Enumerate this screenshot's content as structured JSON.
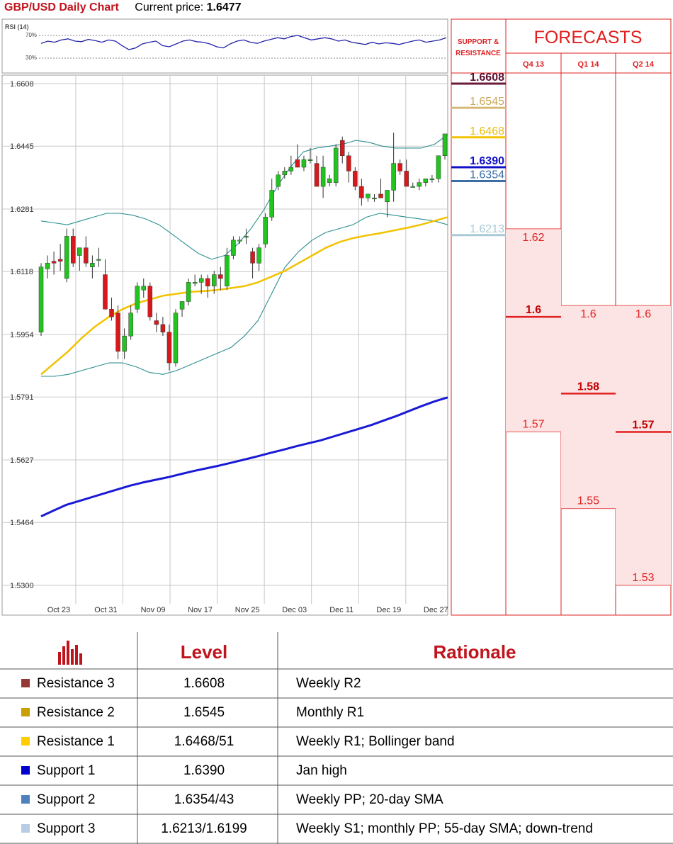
{
  "header": {
    "title": "GBP/USD Daily Chart",
    "price_label": "Current price:",
    "price_value": "1.6477"
  },
  "rsi": {
    "label": "RSI (14)",
    "level_70": "70%",
    "level_30": "30%",
    "values": [
      56,
      60,
      58,
      62,
      64,
      60,
      59,
      63,
      61,
      58,
      62,
      60,
      52,
      45,
      48,
      55,
      58,
      60,
      52,
      50,
      55,
      60,
      62,
      59,
      58,
      55,
      50,
      48,
      55,
      60,
      62,
      58,
      56,
      60,
      63,
      66,
      64,
      68,
      70,
      66,
      62,
      64,
      66,
      64,
      60,
      62,
      58,
      56,
      54,
      58,
      55,
      57,
      56,
      54,
      57,
      60,
      62,
      58,
      60,
      62,
      66
    ]
  },
  "chart_data": {
    "type": "candlestick",
    "title": "GBP/USD Daily Chart",
    "y_ticks": [
      "1.6608",
      "1.6445",
      "1.6281",
      "1.6118",
      "1.5954",
      "1.5791",
      "1.5627",
      "1.5464",
      "1.5300"
    ],
    "ylim": [
      1.53,
      1.6608
    ],
    "x_ticks": [
      "Oct 23",
      "Oct 31",
      "Nov 09",
      "Nov 17",
      "Nov 25",
      "Dec 03",
      "Dec 11",
      "Dec 19",
      "Dec 27"
    ],
    "grid": true,
    "candles": [
      {
        "o": 1.596,
        "h": 1.614,
        "l": 1.595,
        "c": 1.613
      },
      {
        "o": 1.6125,
        "h": 1.616,
        "l": 1.61,
        "c": 1.614
      },
      {
        "o": 1.6145,
        "h": 1.617,
        "l": 1.611,
        "c": 1.614
      },
      {
        "o": 1.615,
        "h": 1.619,
        "l": 1.612,
        "c": 1.6145
      },
      {
        "o": 1.61,
        "h": 1.623,
        "l": 1.609,
        "c": 1.621
      },
      {
        "o": 1.621,
        "h": 1.623,
        "l": 1.613,
        "c": 1.614
      },
      {
        "o": 1.616,
        "h": 1.618,
        "l": 1.612,
        "c": 1.618
      },
      {
        "o": 1.618,
        "h": 1.621,
        "l": 1.613,
        "c": 1.614
      },
      {
        "o": 1.613,
        "h": 1.616,
        "l": 1.61,
        "c": 1.614
      },
      {
        "o": 1.615,
        "h": 1.618,
        "l": 1.613,
        "c": 1.615
      },
      {
        "o": 1.611,
        "h": 1.615,
        "l": 1.602,
        "c": 1.602
      },
      {
        "o": 1.602,
        "h": 1.605,
        "l": 1.599,
        "c": 1.6
      },
      {
        "o": 1.601,
        "h": 1.603,
        "l": 1.589,
        "c": 1.591
      },
      {
        "o": 1.591,
        "h": 1.597,
        "l": 1.589,
        "c": 1.595
      },
      {
        "o": 1.595,
        "h": 1.603,
        "l": 1.594,
        "c": 1.601
      },
      {
        "o": 1.602,
        "h": 1.609,
        "l": 1.601,
        "c": 1.608
      },
      {
        "o": 1.607,
        "h": 1.61,
        "l": 1.605,
        "c": 1.608
      },
      {
        "o": 1.608,
        "h": 1.609,
        "l": 1.599,
        "c": 1.6
      },
      {
        "o": 1.599,
        "h": 1.601,
        "l": 1.596,
        "c": 1.598
      },
      {
        "o": 1.598,
        "h": 1.6,
        "l": 1.595,
        "c": 1.596
      },
      {
        "o": 1.596,
        "h": 1.598,
        "l": 1.586,
        "c": 1.588
      },
      {
        "o": 1.588,
        "h": 1.602,
        "l": 1.587,
        "c": 1.601
      },
      {
        "o": 1.602,
        "h": 1.604,
        "l": 1.6,
        "c": 1.604
      },
      {
        "o": 1.604,
        "h": 1.61,
        "l": 1.603,
        "c": 1.609
      },
      {
        "o": 1.609,
        "h": 1.611,
        "l": 1.608,
        "c": 1.609
      },
      {
        "o": 1.609,
        "h": 1.611,
        "l": 1.606,
        "c": 1.61
      },
      {
        "o": 1.61,
        "h": 1.611,
        "l": 1.605,
        "c": 1.608
      },
      {
        "o": 1.608,
        "h": 1.612,
        "l": 1.606,
        "c": 1.611
      },
      {
        "o": 1.611,
        "h": 1.613,
        "l": 1.607,
        "c": 1.61
      },
      {
        "o": 1.608,
        "h": 1.618,
        "l": 1.607,
        "c": 1.616
      },
      {
        "o": 1.616,
        "h": 1.621,
        "l": 1.615,
        "c": 1.62
      },
      {
        "o": 1.62,
        "h": 1.621,
        "l": 1.619,
        "c": 1.62
      },
      {
        "o": 1.621,
        "h": 1.623,
        "l": 1.619,
        "c": 1.621
      },
      {
        "o": 1.617,
        "h": 1.618,
        "l": 1.61,
        "c": 1.614
      },
      {
        "o": 1.614,
        "h": 1.619,
        "l": 1.612,
        "c": 1.618
      },
      {
        "o": 1.619,
        "h": 1.627,
        "l": 1.618,
        "c": 1.626
      },
      {
        "o": 1.626,
        "h": 1.636,
        "l": 1.625,
        "c": 1.633
      },
      {
        "o": 1.634,
        "h": 1.638,
        "l": 1.633,
        "c": 1.637
      },
      {
        "o": 1.637,
        "h": 1.639,
        "l": 1.636,
        "c": 1.638
      },
      {
        "o": 1.638,
        "h": 1.642,
        "l": 1.637,
        "c": 1.639
      },
      {
        "o": 1.641,
        "h": 1.645,
        "l": 1.639,
        "c": 1.639
      },
      {
        "o": 1.639,
        "h": 1.642,
        "l": 1.638,
        "c": 1.641
      },
      {
        "o": 1.641,
        "h": 1.644,
        "l": 1.64,
        "c": 1.641
      },
      {
        "o": 1.64,
        "h": 1.642,
        "l": 1.634,
        "c": 1.634
      },
      {
        "o": 1.634,
        "h": 1.642,
        "l": 1.631,
        "c": 1.639
      },
      {
        "o": 1.635,
        "h": 1.637,
        "l": 1.634,
        "c": 1.636
      },
      {
        "o": 1.635,
        "h": 1.645,
        "l": 1.634,
        "c": 1.644
      },
      {
        "o": 1.646,
        "h": 1.647,
        "l": 1.64,
        "c": 1.642
      },
      {
        "o": 1.642,
        "h": 1.643,
        "l": 1.635,
        "c": 1.638
      },
      {
        "o": 1.638,
        "h": 1.639,
        "l": 1.633,
        "c": 1.634
      },
      {
        "o": 1.634,
        "h": 1.636,
        "l": 1.629,
        "c": 1.631
      },
      {
        "o": 1.631,
        "h": 1.632,
        "l": 1.63,
        "c": 1.632
      },
      {
        "o": 1.631,
        "h": 1.632,
        "l": 1.63,
        "c": 1.631
      },
      {
        "o": 1.632,
        "h": 1.636,
        "l": 1.631,
        "c": 1.631
      },
      {
        "o": 1.63,
        "h": 1.633,
        "l": 1.626,
        "c": 1.633
      },
      {
        "o": 1.633,
        "h": 1.648,
        "l": 1.63,
        "c": 1.64
      },
      {
        "o": 1.64,
        "h": 1.641,
        "l": 1.637,
        "c": 1.638
      },
      {
        "o": 1.638,
        "h": 1.641,
        "l": 1.634,
        "c": 1.634
      },
      {
        "o": 1.634,
        "h": 1.635,
        "l": 1.634,
        "c": 1.634
      },
      {
        "o": 1.634,
        "h": 1.636,
        "l": 1.633,
        "c": 1.635
      },
      {
        "o": 1.635,
        "h": 1.636,
        "l": 1.634,
        "c": 1.636
      },
      {
        "o": 1.636,
        "h": 1.637,
        "l": 1.635,
        "c": 1.636
      },
      {
        "o": 1.636,
        "h": 1.642,
        "l": 1.635,
        "c": 1.642
      },
      {
        "o": 1.642,
        "h": 1.647,
        "l": 1.641,
        "c": 1.6477
      }
    ],
    "sma_long": [
      1.548,
      1.5495,
      1.551,
      1.552,
      1.553,
      1.554,
      1.555,
      1.556,
      1.5568,
      1.5575,
      1.5582,
      1.559,
      1.5598,
      1.5605,
      1.5612,
      1.562,
      1.5628,
      1.5636,
      1.5645,
      1.5653,
      1.5662,
      1.567,
      1.5678,
      1.5688,
      1.5698,
      1.5708,
      1.5718,
      1.573,
      1.5742,
      1.5755,
      1.5768,
      1.578,
      1.579
    ],
    "sma_55": [
      1.585,
      1.588,
      1.591,
      1.5945,
      1.5975,
      1.6,
      1.602,
      1.6035,
      1.6045,
      1.6055,
      1.606,
      1.6065,
      1.6067,
      1.607,
      1.6075,
      1.608,
      1.609,
      1.6105,
      1.612,
      1.614,
      1.616,
      1.618,
      1.6195,
      1.6205,
      1.6212,
      1.6218,
      1.6225,
      1.6232,
      1.624,
      1.625,
      1.626
    ],
    "bb_upper": [
      1.625,
      1.6245,
      1.624,
      1.625,
      1.626,
      1.627,
      1.627,
      1.6265,
      1.6255,
      1.624,
      1.6215,
      1.619,
      1.6165,
      1.615,
      1.616,
      1.619,
      1.623,
      1.628,
      1.634,
      1.639,
      1.643,
      1.644,
      1.6445,
      1.645,
      1.646,
      1.6455,
      1.6445,
      1.644,
      1.644,
      1.644,
      1.645,
      1.6475
    ],
    "bb_lower": [
      1.5845,
      1.5845,
      1.585,
      1.586,
      1.587,
      1.588,
      1.588,
      1.587,
      1.5855,
      1.585,
      1.586,
      1.5875,
      1.589,
      1.5905,
      1.592,
      1.595,
      1.599,
      1.606,
      1.613,
      1.617,
      1.62,
      1.622,
      1.623,
      1.624,
      1.626,
      1.627,
      1.6265,
      1.626,
      1.6255,
      1.625,
      1.624
    ]
  },
  "support_resistance": {
    "header": "SUPPORT & RESISTANCE",
    "levels": [
      {
        "value": "1.6608",
        "price": 1.6608,
        "color": "#6a1b3a",
        "text_color": "#5b1030"
      },
      {
        "value": "1.6545",
        "price": 1.6545,
        "color": "#d6b878",
        "text_color": "#caa75a"
      },
      {
        "value": "1.6468",
        "price": 1.6468,
        "color": "#f2c200",
        "text_color": "#e8be10"
      },
      {
        "value": "1.6390",
        "price": 1.639,
        "color": "#1010c8",
        "text_color": "#1010c8"
      },
      {
        "value": "1.6354",
        "price": 1.6354,
        "color": "#3a6ea5",
        "text_color": "#3a6ea5"
      },
      {
        "value": "1.6213",
        "price": 1.6213,
        "color": "#a9cbd6",
        "text_color": "#a9cbd6"
      }
    ]
  },
  "forecasts": {
    "title": "FORECASTS",
    "columns": [
      {
        "quarter": "Q4 13",
        "high": "1.62",
        "mid": "1.6",
        "low": "1.57",
        "high_v": 1.62,
        "mid_v": 1.6,
        "low_v": 1.57
      },
      {
        "quarter": "Q1 14",
        "high": "1.6",
        "mid": "1.58",
        "low": "1.55",
        "high_v": 1.6,
        "mid_v": 1.58,
        "low_v": 1.55
      },
      {
        "quarter": "Q2 14",
        "high": "1.6",
        "mid": "1.57",
        "low": "1.53",
        "high_v": 1.6,
        "mid_v": 1.57,
        "low_v": 1.53
      }
    ]
  },
  "levels_table": {
    "headers": {
      "level": "Level",
      "rationale": "Rationale"
    },
    "rows": [
      {
        "name": "Resistance 3",
        "level": "1.6608",
        "rationale": "Weekly R2",
        "color": "#953735"
      },
      {
        "name": "Resistance 2",
        "level": "1.6545",
        "rationale": "Monthly R1",
        "color": "#c9a000"
      },
      {
        "name": "Resistance 1",
        "level": "1.6468/51",
        "rationale": "Weekly R1; Bollinger band",
        "color": "#ffcc00"
      },
      {
        "name": "Support 1",
        "level": "1.6390",
        "rationale": "Jan high",
        "color": "#0000cc"
      },
      {
        "name": "Support 2",
        "level": "1.6354/43",
        "rationale": "Weekly PP; 20-day SMA",
        "color": "#4f81bd"
      },
      {
        "name": "Support 3",
        "level": "1.6213/1.6199",
        "rationale": "Weekly S1; monthly PP; 55-day SMA; down-trend",
        "color": "#b8cce4"
      }
    ]
  },
  "colors": {
    "accent_red": "#e41a1c",
    "bull": "#22c41e",
    "bear": "#d7191c",
    "forecast_fill": "#fde4e4"
  }
}
